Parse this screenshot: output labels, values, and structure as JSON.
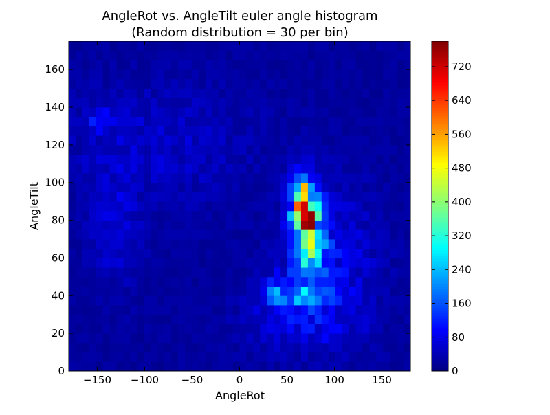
{
  "chart_data": {
    "type": "heatmap",
    "title_line1": "AngleRot vs. AngleTilt euler angle histogram",
    "title_line2": "(Random distribution = 30 per bin)",
    "xlabel": "AngleRot",
    "ylabel": "AngleTilt",
    "xlim": [
      -180,
      180
    ],
    "ylim": [
      0,
      175
    ],
    "bin_size_x": 7.2,
    "bin_size_y": 5,
    "xticks": [
      -150,
      -100,
      -50,
      0,
      50,
      100,
      150
    ],
    "xtick_labels": [
      "−150",
      "−100",
      "−50",
      "0",
      "50",
      "100",
      "150"
    ],
    "yticks": [
      0,
      20,
      40,
      60,
      80,
      100,
      120,
      140,
      160
    ],
    "ytick_labels": [
      "0",
      "20",
      "40",
      "60",
      "80",
      "100",
      "120",
      "140",
      "160"
    ],
    "colorbar": {
      "min": 0,
      "max": 780,
      "ticks": [
        0,
        80,
        160,
        240,
        320,
        400,
        480,
        560,
        640,
        720
      ],
      "tick_labels": [
        "0",
        "80",
        "160",
        "240",
        "320",
        "400",
        "480",
        "560",
        "640",
        "720"
      ],
      "colormap": "jet"
    },
    "background_level": 30,
    "features": [
      {
        "desc": "main peak",
        "x": 70,
        "y": 80,
        "peak_value": 780
      },
      {
        "desc": "ridge",
        "x": 68,
        "y": 88,
        "peak_value": 600
      },
      {
        "desc": "lower cluster",
        "x": 55,
        "y": 42,
        "peak_value": 380
      },
      {
        "desc": "upper-left spot",
        "x": -145,
        "y": 133,
        "peak_value": 140
      }
    ]
  }
}
